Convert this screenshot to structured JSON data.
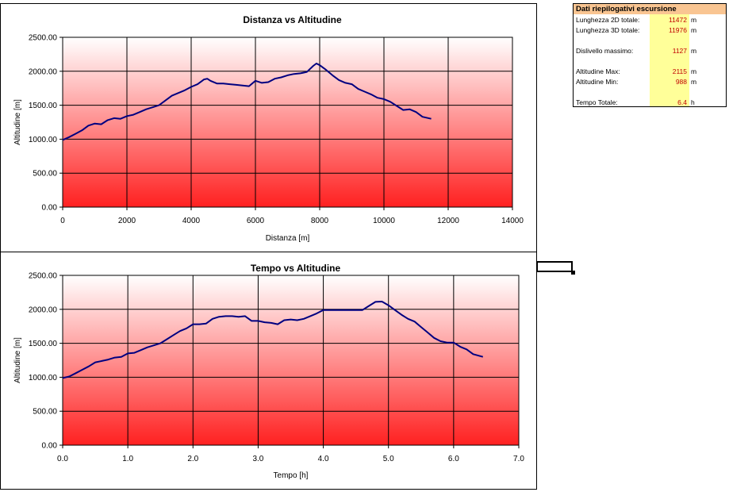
{
  "summary": {
    "title": "Dati riepilogativi escursione",
    "rows": [
      {
        "label": "Lunghezza 2D totale:",
        "value": "11472",
        "unit": "m"
      },
      {
        "label": "Lunghezza 3D totale:",
        "value": "11976",
        "unit": "m"
      },
      {
        "label": "Dislivello massimo:",
        "value": "1127",
        "unit": "m"
      },
      {
        "label": "Altitudine Max:",
        "value": "2115",
        "unit": "m"
      },
      {
        "label": "Altitudine Min:",
        "value": "988",
        "unit": "m"
      },
      {
        "label": "Tempo Totale:",
        "value": "6.4",
        "unit": "h"
      }
    ]
  },
  "colors": {
    "plot_top": "#ffffff",
    "plot_bottom": "#ff2020",
    "line": "#000080",
    "header_bg": "#f9c592",
    "value_bg": "#ffff99",
    "value_text": "#c00000"
  },
  "chart_data": [
    {
      "type": "line",
      "title": "Distanza vs Altitudine",
      "xlabel": "Distanza [m]",
      "ylabel": "Altitudine [m]",
      "xlim": [
        0,
        14000
      ],
      "ylim": [
        0,
        2500
      ],
      "x_ticks": [
        "0",
        "2000",
        "4000",
        "6000",
        "8000",
        "10000",
        "12000",
        "14000"
      ],
      "y_ticks": [
        "0.00",
        "500.00",
        "1000.00",
        "1500.00",
        "2000.00",
        "2500.00"
      ],
      "grid": true,
      "series": [
        {
          "x": [
            0,
            200,
            400,
            600,
            800,
            1000,
            1200,
            1400,
            1600,
            1800,
            2000,
            2200,
            2400,
            2600,
            2800,
            3000,
            3200,
            3400,
            3600,
            3800,
            4000,
            4200,
            4400,
            4500,
            4600,
            4800,
            5000,
            5200,
            5400,
            5600,
            5800,
            6000,
            6200,
            6400,
            6600,
            6800,
            7000,
            7200,
            7400,
            7600,
            7800,
            7900,
            8000,
            8200,
            8400,
            8600,
            8800,
            9000,
            9200,
            9400,
            9600,
            9800,
            10000,
            10200,
            10400,
            10600,
            10800,
            11000,
            11200,
            11472
          ],
          "y": [
            988,
            1030,
            1080,
            1130,
            1200,
            1230,
            1220,
            1280,
            1310,
            1300,
            1340,
            1360,
            1400,
            1440,
            1470,
            1500,
            1570,
            1640,
            1680,
            1720,
            1770,
            1810,
            1880,
            1890,
            1860,
            1820,
            1820,
            1810,
            1800,
            1790,
            1780,
            1860,
            1830,
            1840,
            1890,
            1910,
            1940,
            1960,
            1970,
            1990,
            2080,
            2115,
            2090,
            2020,
            1940,
            1870,
            1830,
            1810,
            1740,
            1700,
            1660,
            1610,
            1590,
            1550,
            1490,
            1430,
            1440,
            1400,
            1330,
            1300
          ]
        }
      ]
    },
    {
      "type": "line",
      "title": "Tempo vs Altitudine",
      "xlabel": "Tempo [h]",
      "ylabel": "Altitudine [m]",
      "xlim": [
        0,
        7
      ],
      "ylim": [
        0,
        2500
      ],
      "x_ticks": [
        "0.0",
        "1.0",
        "2.0",
        "3.0",
        "4.0",
        "5.0",
        "6.0",
        "7.0"
      ],
      "y_ticks": [
        "0.00",
        "500.00",
        "1000.00",
        "1500.00",
        "2000.00",
        "2500.00"
      ],
      "grid": true,
      "series": [
        {
          "x": [
            0,
            0.1,
            0.2,
            0.3,
            0.4,
            0.5,
            0.6,
            0.7,
            0.8,
            0.9,
            1.0,
            1.1,
            1.2,
            1.3,
            1.4,
            1.5,
            1.6,
            1.7,
            1.8,
            1.9,
            2.0,
            2.1,
            2.2,
            2.3,
            2.4,
            2.5,
            2.6,
            2.7,
            2.8,
            2.9,
            3.0,
            3.1,
            3.2,
            3.3,
            3.4,
            3.5,
            3.6,
            3.7,
            3.8,
            3.9,
            4.0,
            4.2,
            4.4,
            4.6,
            4.7,
            4.8,
            4.9,
            5.0,
            5.1,
            5.2,
            5.3,
            5.4,
            5.5,
            5.6,
            5.7,
            5.8,
            5.9,
            6.0,
            6.1,
            6.2,
            6.3,
            6.45
          ],
          "y": [
            988,
            1010,
            1060,
            1110,
            1160,
            1220,
            1240,
            1260,
            1290,
            1300,
            1350,
            1360,
            1400,
            1440,
            1470,
            1500,
            1560,
            1620,
            1680,
            1720,
            1780,
            1780,
            1790,
            1860,
            1890,
            1900,
            1900,
            1890,
            1900,
            1830,
            1830,
            1810,
            1800,
            1780,
            1840,
            1850,
            1840,
            1860,
            1900,
            1940,
            1990,
            1990,
            1990,
            1990,
            2050,
            2110,
            2115,
            2060,
            1990,
            1920,
            1860,
            1820,
            1740,
            1660,
            1580,
            1530,
            1510,
            1510,
            1450,
            1410,
            1340,
            1300
          ]
        }
      ]
    }
  ]
}
